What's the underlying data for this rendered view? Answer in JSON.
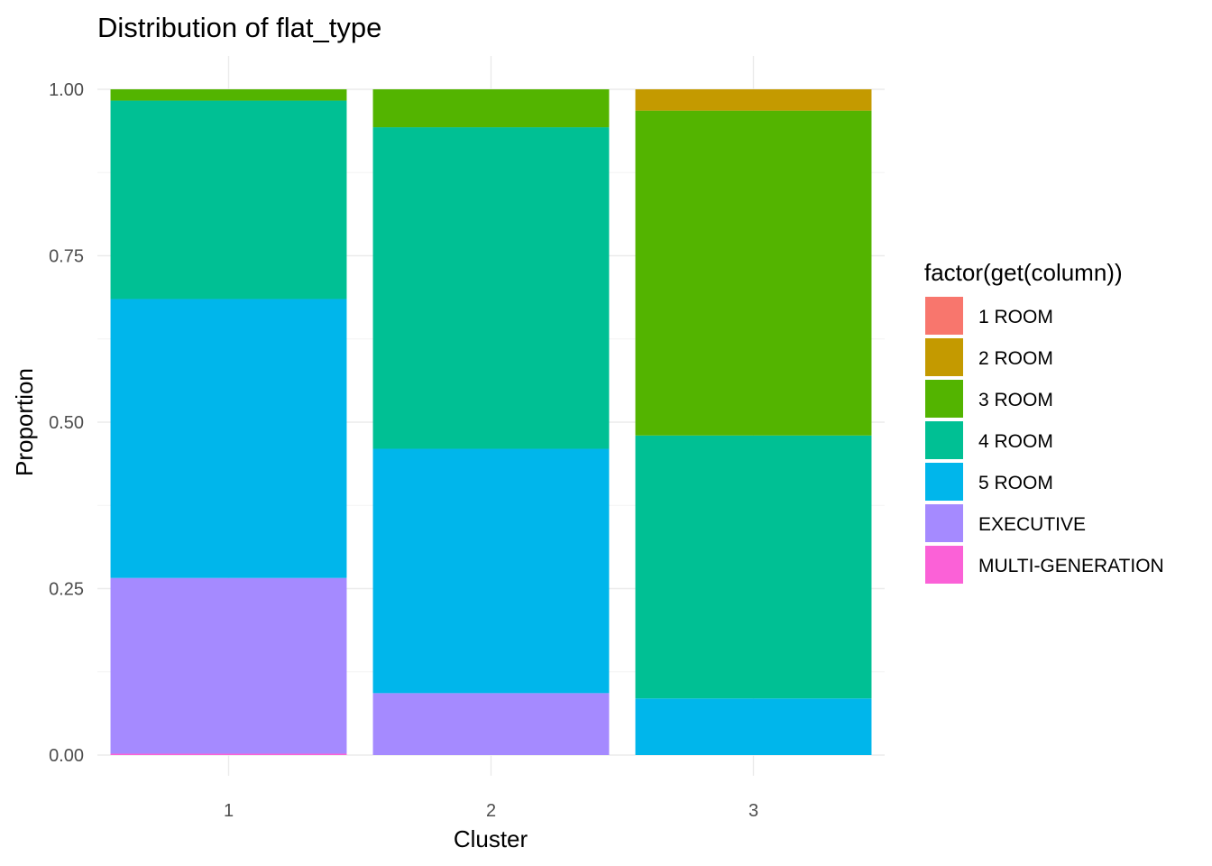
{
  "chart_data": {
    "type": "bar",
    "stacked": true,
    "title": "Distribution of flat_type",
    "xlabel": "Cluster",
    "ylabel": "Proportion",
    "categories": [
      "1",
      "2",
      "3"
    ],
    "ylim": [
      0,
      1
    ],
    "yticks": [
      "0.00",
      "0.25",
      "0.50",
      "0.75",
      "1.00"
    ],
    "grid": true,
    "legend": {
      "title": "factor(get(column))",
      "position": "right"
    },
    "series": [
      {
        "name": "1 ROOM",
        "color": "#F8766D",
        "values": [
          0.0,
          0.0,
          0.0
        ]
      },
      {
        "name": "2 ROOM",
        "color": "#C49A00",
        "values": [
          0.0,
          0.0,
          0.032
        ]
      },
      {
        "name": "3 ROOM",
        "color": "#53B400",
        "values": [
          0.017,
          0.057,
          0.488
        ]
      },
      {
        "name": "4 ROOM",
        "color": "#00C094",
        "values": [
          0.298,
          0.483,
          0.395
        ]
      },
      {
        "name": "5 ROOM",
        "color": "#00B6EB",
        "values": [
          0.419,
          0.367,
          0.085
        ]
      },
      {
        "name": "EXECUTIVE",
        "color": "#A58AFF",
        "values": [
          0.264,
          0.093,
          0.0
        ]
      },
      {
        "name": "MULTI-GENERATION",
        "color": "#FB61D7",
        "values": [
          0.002,
          0.0,
          0.0
        ]
      }
    ]
  }
}
